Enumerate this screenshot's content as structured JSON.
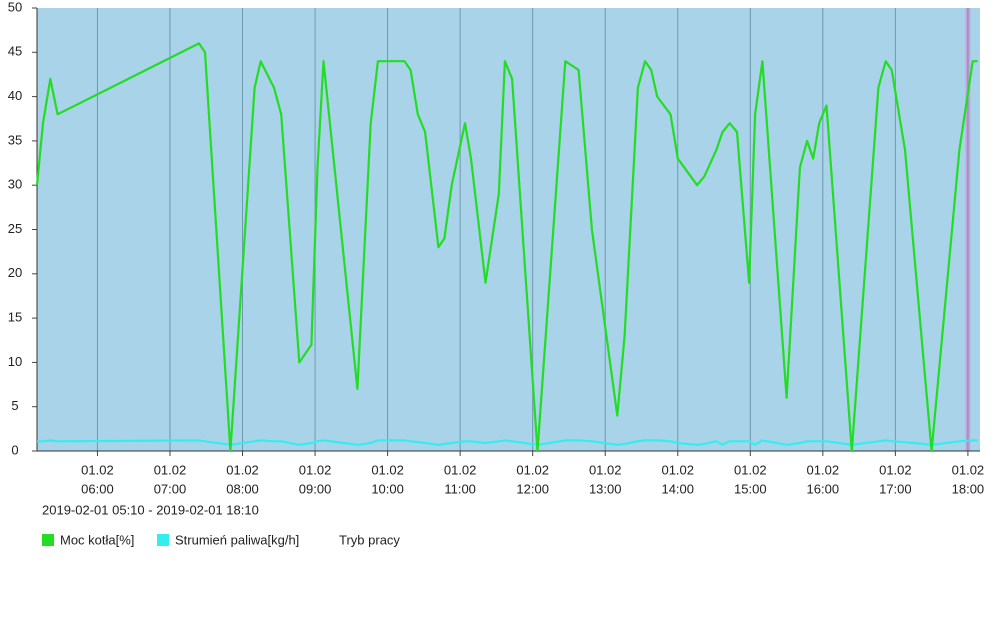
{
  "chart_data": {
    "type": "line",
    "subtitle": "2019-02-01 05:10 - 2019-02-01 18:10",
    "x": [
      "05:10",
      "05:15",
      "05:21",
      "05:27",
      "07:24",
      "07:29",
      "07:50",
      "08:10",
      "08:15",
      "08:26",
      "08:32",
      "08:47",
      "08:57",
      "09:02",
      "09:07",
      "09:35",
      "09:46",
      "09:52",
      "10:14",
      "10:19",
      "10:25",
      "10:31",
      "10:42",
      "10:47",
      "10:53",
      "11:04",
      "11:09",
      "11:21",
      "11:32",
      "11:37",
      "11:43",
      "12:04",
      "12:27",
      "12:38",
      "12:49",
      "13:10",
      "13:16",
      "13:27",
      "13:33",
      "13:38",
      "13:43",
      "13:54",
      "14:00",
      "14:16",
      "14:22",
      "14:32",
      "14:37",
      "14:43",
      "14:49",
      "14:59",
      "15:04",
      "15:10",
      "15:30",
      "15:41",
      "15:47",
      "15:52",
      "15:57",
      "16:03",
      "16:24",
      "16:46",
      "16:52",
      "16:57",
      "17:08",
      "17:30",
      "17:53",
      "18:04",
      "18:08"
    ],
    "series": [
      {
        "name": "Moc kotła[%]",
        "color": "#22dd22",
        "values": [
          30,
          37,
          42,
          38,
          46,
          45,
          0,
          41,
          44,
          41,
          38,
          10,
          12,
          32,
          44,
          7,
          37,
          44,
          44,
          43,
          38,
          36,
          23,
          24,
          30,
          37,
          33,
          19,
          29,
          44,
          42,
          0,
          44,
          43,
          25,
          4,
          13,
          41,
          44,
          43,
          40,
          38,
          33,
          30,
          31,
          34,
          36,
          37,
          36,
          19,
          38,
          44,
          6,
          32,
          35,
          33,
          37,
          39,
          0,
          41,
          44,
          43,
          34,
          0,
          34,
          44,
          44
        ]
      },
      {
        "name": "Strumień paliwa[kg/h]",
        "color": "#33eeee",
        "values": [
          1.1,
          1.1,
          1.2,
          1.1,
          1.2,
          1.1,
          0.7,
          1.1,
          1.2,
          1.1,
          1.1,
          0.7,
          0.9,
          1.1,
          1.2,
          0.7,
          0.9,
          1.2,
          1.2,
          1.1,
          1.0,
          0.9,
          0.7,
          0.8,
          0.9,
          1.1,
          1.1,
          0.9,
          1.1,
          1.2,
          1.1,
          0.7,
          1.2,
          1.2,
          1.1,
          0.7,
          0.8,
          1.1,
          1.2,
          1.2,
          1.2,
          1.1,
          0.9,
          0.7,
          0.8,
          1.1,
          0.7,
          1.1,
          1.1,
          1.1,
          0.7,
          1.2,
          0.7,
          0.9,
          1.1,
          1.1,
          1.1,
          1.1,
          0.7,
          1.1,
          1.2,
          1.1,
          1.0,
          0.7,
          1.1,
          1.2,
          1.2
        ]
      },
      {
        "name": "Tryb pracy",
        "color": "#c9a0dc",
        "bands": [
          [
            "17:58",
            "18:02"
          ]
        ]
      }
    ],
    "xlim": [
      "05:10",
      "18:10"
    ],
    "xticks": [
      {
        "value": "06:00",
        "label": [
          "01.02",
          "06:00"
        ]
      },
      {
        "value": "07:00",
        "label": [
          "01.02",
          "07:00"
        ]
      },
      {
        "value": "08:00",
        "label": [
          "01.02",
          "08:00"
        ]
      },
      {
        "value": "09:00",
        "label": [
          "01.02",
          "09:00"
        ]
      },
      {
        "value": "10:00",
        "label": [
          "01.02",
          "10:00"
        ]
      },
      {
        "value": "11:00",
        "label": [
          "01.02",
          "11:00"
        ]
      },
      {
        "value": "12:00",
        "label": [
          "01.02",
          "12:00"
        ]
      },
      {
        "value": "13:00",
        "label": [
          "01.02",
          "13:00"
        ]
      },
      {
        "value": "14:00",
        "label": [
          "01.02",
          "14:00"
        ]
      },
      {
        "value": "15:00",
        "label": [
          "01.02",
          "15:00"
        ]
      },
      {
        "value": "16:00",
        "label": [
          "01.02",
          "16:00"
        ]
      },
      {
        "value": "17:00",
        "label": [
          "01.02",
          "17:00"
        ]
      },
      {
        "value": "18:00",
        "label": [
          "01.02",
          "18:00"
        ]
      }
    ],
    "ylim": [
      0,
      50
    ],
    "yticks": [
      0,
      5,
      10,
      15,
      20,
      25,
      30,
      35,
      40,
      45,
      50
    ],
    "grid": "x",
    "background": "#a9d3e9"
  }
}
